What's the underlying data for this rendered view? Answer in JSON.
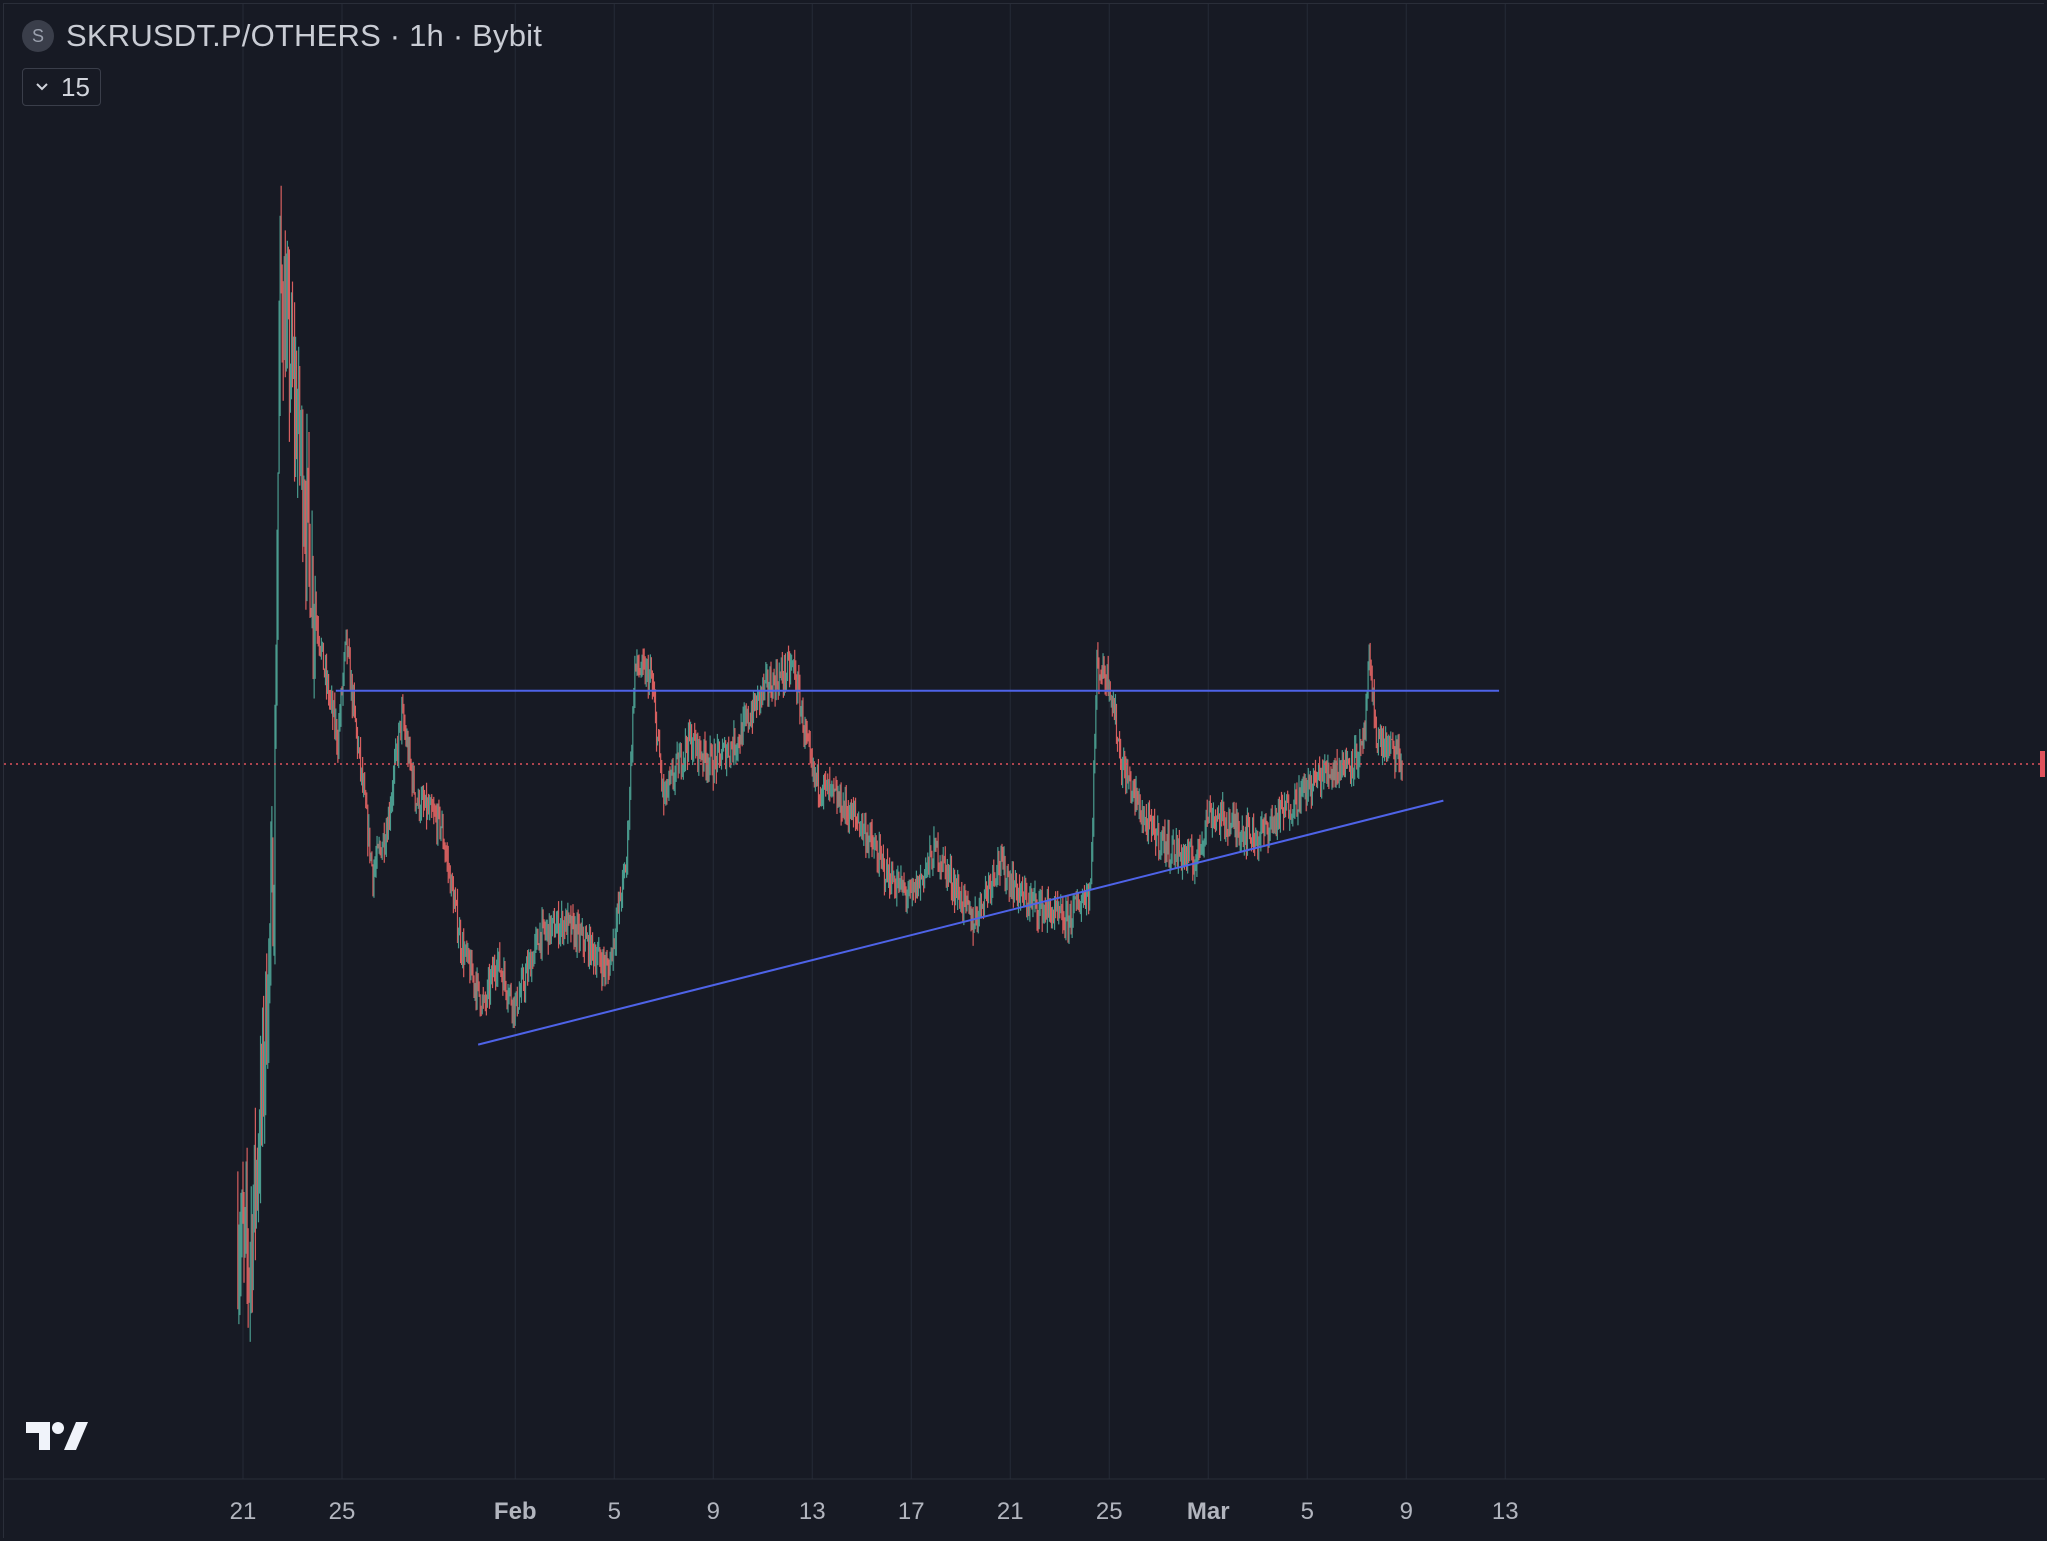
{
  "legend": {
    "symbol_logo": "S",
    "title": "SKRUSDT.P/OTHERS · 1h · Bybit",
    "indicator_value": "15"
  },
  "colors": {
    "background": "#171a24",
    "grid": "#252a36",
    "up": "#4a9b8e",
    "down": "#d75f5f",
    "trendline": "#4e63e8",
    "last_price_line": "#e0525c",
    "axis_text": "#b2b5be"
  },
  "chart_data": {
    "type": "candlestick",
    "timeframe": "1h",
    "x_axis": {
      "start": "Jan 20",
      "end": "Mar 14",
      "tick_labels": [
        {
          "label": "21",
          "date": "Jan 21",
          "bold": false
        },
        {
          "label": "25",
          "date": "Jan 25",
          "bold": false
        },
        {
          "label": "Feb",
          "date": "Feb 1",
          "bold": true
        },
        {
          "label": "5",
          "date": "Feb 5",
          "bold": false
        },
        {
          "label": "9",
          "date": "Feb 9",
          "bold": false
        },
        {
          "label": "13",
          "date": "Feb 13",
          "bold": false
        },
        {
          "label": "17",
          "date": "Feb 17",
          "bold": false
        },
        {
          "label": "21",
          "date": "Feb 21",
          "bold": false
        },
        {
          "label": "25",
          "date": "Feb 25",
          "bold": false
        },
        {
          "label": "Mar",
          "date": "Mar 1",
          "bold": true
        },
        {
          "label": "5",
          "date": "Mar 5",
          "bold": false
        },
        {
          "label": "9",
          "date": "Mar 9",
          "bold": false
        },
        {
          "label": "13",
          "date": "Mar 13",
          "bold": false
        }
      ]
    },
    "price_profile": [
      [
        "Jan 20 18:00",
        0.12
      ],
      [
        "Jan 21 06:00",
        0.09
      ],
      [
        "Jan 21 18:00",
        0.22
      ],
      [
        "Jan 22 06:00",
        0.42
      ],
      [
        "Jan 22 12:00",
        0.9
      ],
      [
        "Jan 22 20:00",
        0.84
      ],
      [
        "Jan 23 08:00",
        0.76
      ],
      [
        "Jan 23 20:00",
        0.64
      ],
      [
        "Jan 24 08:00",
        0.57
      ],
      [
        "Jan 24 20:00",
        0.52
      ],
      [
        "Jan 25 04:00",
        0.6
      ],
      [
        "Jan 25 16:00",
        0.51
      ],
      [
        "Jan 26 06:00",
        0.41
      ],
      [
        "Jan 26 20:00",
        0.45
      ],
      [
        "Jan 27 10:00",
        0.54
      ],
      [
        "Jan 28 00:00",
        0.47
      ],
      [
        "Jan 29 00:00",
        0.45
      ],
      [
        "Jan 29 20:00",
        0.35
      ],
      [
        "Jan 30 18:00",
        0.3
      ],
      [
        "Jan 31 06:00",
        0.34
      ],
      [
        "Feb 1 00:00",
        0.3
      ],
      [
        "Feb 2 00:00",
        0.36
      ],
      [
        "Feb 3 00:00",
        0.37
      ],
      [
        "Feb 4 00:00",
        0.35
      ],
      [
        "Feb 4 18:00",
        0.33
      ],
      [
        "Feb 5 12:00",
        0.42
      ],
      [
        "Feb 5 20:00",
        0.58
      ],
      [
        "Feb 6 12:00",
        0.57
      ],
      [
        "Feb 7 00:00",
        0.47
      ],
      [
        "Feb 8 00:00",
        0.52
      ],
      [
        "Feb 9 00:00",
        0.5
      ],
      [
        "Feb 10 00:00",
        0.52
      ],
      [
        "Feb 11 00:00",
        0.56
      ],
      [
        "Feb 12 06:00",
        0.58
      ],
      [
        "Feb 13 00:00",
        0.49
      ],
      [
        "Feb 14 00:00",
        0.47
      ],
      [
        "Feb 15 00:00",
        0.45
      ],
      [
        "Feb 16 00:00",
        0.41
      ],
      [
        "Feb 17 00:00",
        0.39
      ],
      [
        "Feb 18 00:00",
        0.43
      ],
      [
        "Feb 19 12:00",
        0.37
      ],
      [
        "Feb 20 12:00",
        0.42
      ],
      [
        "Feb 21 12:00",
        0.39
      ],
      [
        "Feb 22 12:00",
        0.38
      ],
      [
        "Feb 23 06:00",
        0.37
      ],
      [
        "Feb 24 06:00",
        0.4
      ],
      [
        "Feb 24 12:00",
        0.58
      ],
      [
        "Feb 25 00:00",
        0.57
      ],
      [
        "Feb 25 12:00",
        0.5
      ],
      [
        "Feb 26 12:00",
        0.45
      ],
      [
        "Feb 27 12:00",
        0.43
      ],
      [
        "Feb 28 12:00",
        0.42
      ],
      [
        "Mar 1 00:00",
        0.46
      ],
      [
        "Mar 2 00:00",
        0.45
      ],
      [
        "Mar 3 00:00",
        0.44
      ],
      [
        "Mar 4 00:00",
        0.46
      ],
      [
        "Mar 5 12:00",
        0.49
      ],
      [
        "Mar 6 12:00",
        0.5
      ],
      [
        "Mar 7 06:00",
        0.51
      ],
      [
        "Mar 7 12:00",
        0.58
      ],
      [
        "Mar 7 20:00",
        0.52
      ],
      [
        "Mar 8 12:00",
        0.51
      ],
      [
        "Mar 8 20:00",
        0.5
      ]
    ],
    "resistance_line": {
      "from": [
        "Jan 24 18:00",
        0.56
      ],
      "to": [
        "Mar 12 18:00",
        0.56
      ]
    },
    "support_line": {
      "from": [
        "Jan 30 12:00",
        0.27
      ],
      "to": [
        "Mar 10 12:00",
        0.47
      ]
    },
    "last_price": 0.5,
    "last_price_line": "dotted",
    "grid": true,
    "price_axis_labels": false
  }
}
